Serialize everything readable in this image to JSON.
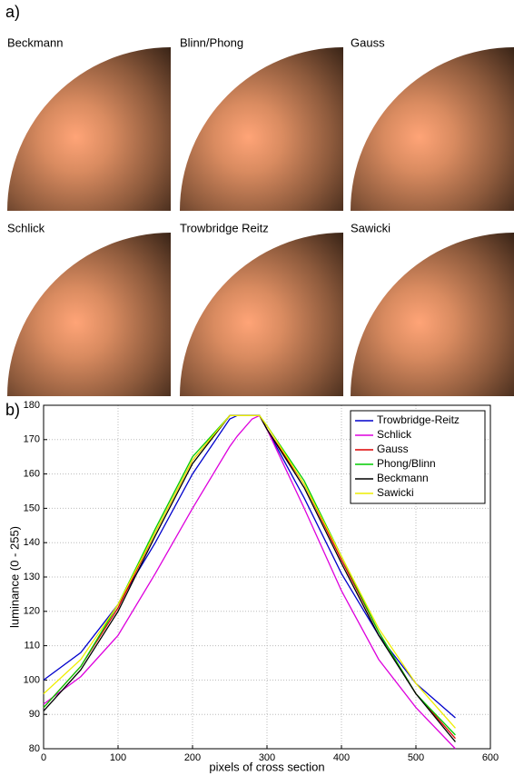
{
  "panel_a": {
    "label": "a)",
    "images": [
      "Beckmann",
      "Blinn/Phong",
      "Gauss",
      "Schlick",
      "Trowbridge Reitz",
      "Sawicki"
    ]
  },
  "panel_b_label": "b)",
  "chart_data": {
    "type": "line",
    "xlabel": "pixels of cross section",
    "ylabel": "luminance (0 - 255)",
    "x": [
      0,
      50,
      100,
      150,
      200,
      250,
      260,
      280,
      290,
      300,
      350,
      400,
      450,
      500,
      553
    ],
    "series": [
      {
        "name": "Trowbridge-Reitz",
        "color": "#0000cc",
        "values": [
          100,
          108,
          122,
          140,
          160,
          176,
          177,
          177,
          177,
          173,
          153,
          131,
          113,
          99,
          89
        ]
      },
      {
        "name": "Schlick",
        "color": "#dd00dd",
        "values": [
          93,
          101,
          113,
          131,
          150,
          168,
          171,
          176,
          177,
          173,
          150,
          126,
          106,
          92,
          80
        ]
      },
      {
        "name": "Gauss",
        "color": "#dd0000",
        "values": [
          92,
          104,
          121,
          143,
          164,
          177,
          177,
          177,
          177,
          173,
          157,
          135,
          114,
          96,
          83
        ]
      },
      {
        "name": "Phong/Blinn",
        "color": "#00cc00",
        "values": [
          92,
          104,
          122,
          144,
          165,
          177,
          177,
          177,
          177,
          174,
          158,
          136,
          114,
          96,
          84
        ]
      },
      {
        "name": "Beckmann",
        "color": "#000000",
        "values": [
          91,
          103,
          120,
          142,
          163,
          177,
          177,
          177,
          177,
          173,
          156,
          134,
          113,
          96,
          82
        ]
      },
      {
        "name": "Sawicki",
        "color": "#eeee00",
        "values": [
          96,
          106,
          122,
          143,
          164,
          177,
          177,
          177,
          177,
          174,
          157,
          136,
          115,
          99,
          86
        ]
      }
    ],
    "xlim": [
      0,
      600
    ],
    "xticks": [
      0,
      100,
      200,
      300,
      400,
      500,
      600
    ],
    "ylim": [
      80,
      180
    ],
    "yticks": [
      80,
      90,
      100,
      110,
      120,
      130,
      140,
      150,
      160,
      170,
      180
    ],
    "grid": true,
    "legend": "upper right"
  }
}
